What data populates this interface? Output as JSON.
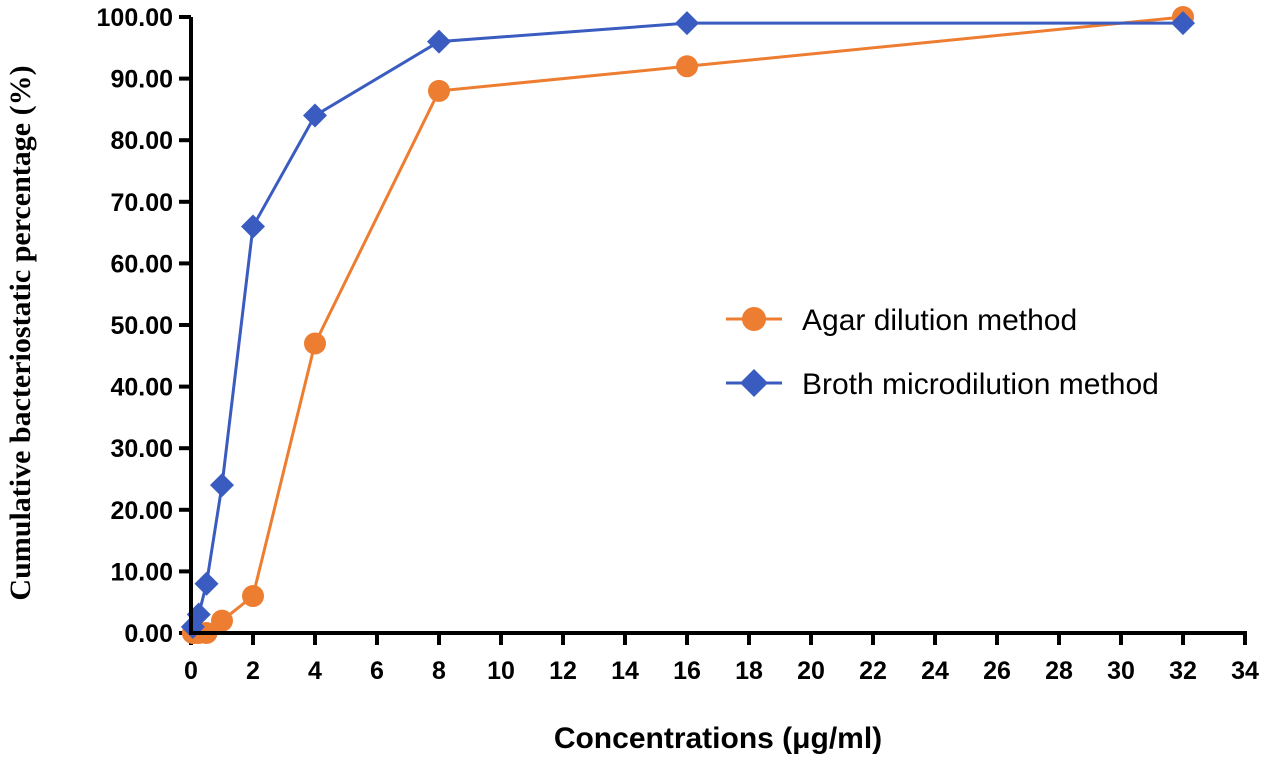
{
  "chart_data": {
    "type": "line",
    "title": "",
    "xlabel": "Concentrations (μg/ml)",
    "ylabel": "Cumulative bacteriostatic percentage (%)",
    "xlim": [
      0,
      34
    ],
    "ylim": [
      0,
      100
    ],
    "x_ticks": [
      "0",
      "2",
      "4",
      "6",
      "8",
      "10",
      "12",
      "14",
      "16",
      "18",
      "20",
      "22",
      "24",
      "26",
      "28",
      "30",
      "32",
      "34"
    ],
    "y_ticks": [
      "0.00",
      "10.00",
      "20.00",
      "30.00",
      "40.00",
      "50.00",
      "60.00",
      "70.00",
      "80.00",
      "90.00",
      "100.00"
    ],
    "grid": false,
    "legend_position": "center-right",
    "series": [
      {
        "name": "Agar dilution method",
        "color": "#ED7D31",
        "marker": "circle",
        "x": [
          0.06,
          0.125,
          0.25,
          0.5,
          1,
          2,
          4,
          8,
          16,
          32
        ],
        "y": [
          0,
          0,
          0,
          0,
          2,
          6,
          47,
          88,
          92,
          100
        ]
      },
      {
        "name": "Broth microdilution method",
        "color": "#3A5BBF",
        "marker": "diamond",
        "x": [
          0.06,
          0.25,
          0.5,
          1,
          2,
          4,
          8,
          16,
          32
        ],
        "y": [
          1,
          3,
          8,
          24,
          66,
          84,
          96,
          99,
          99
        ]
      }
    ]
  }
}
